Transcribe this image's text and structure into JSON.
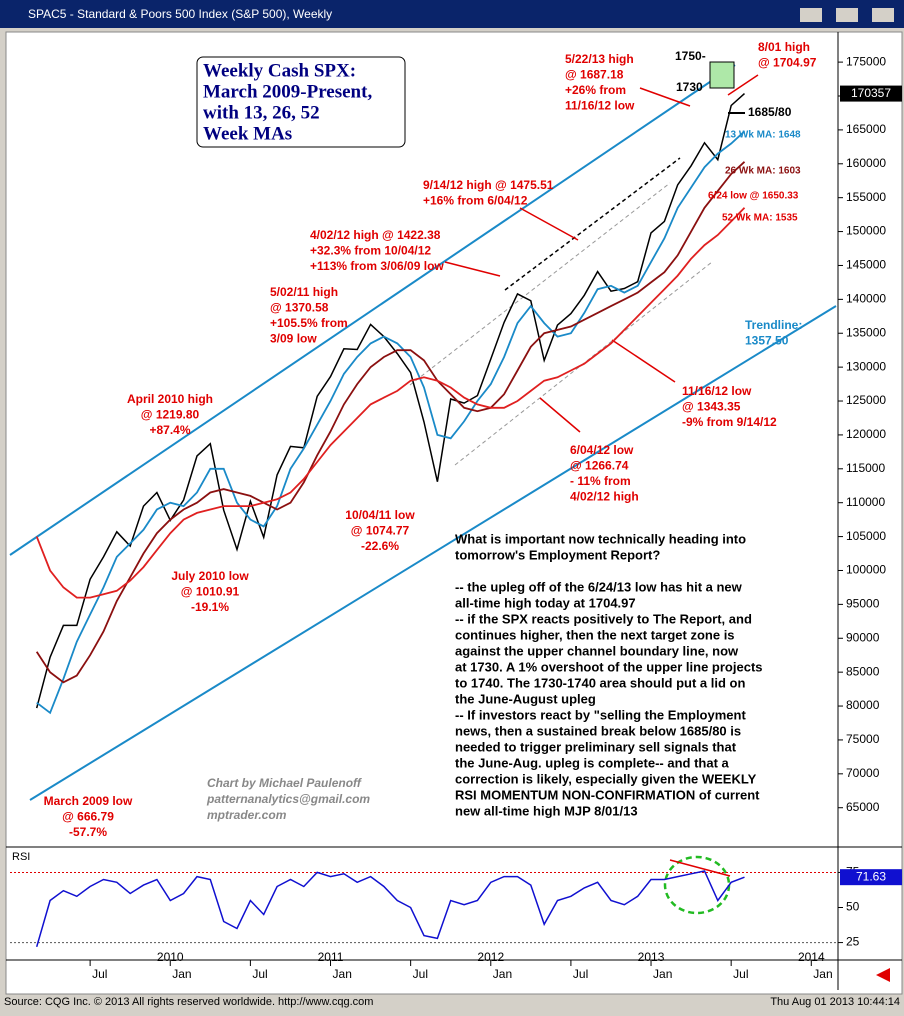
{
  "window_title": "SPAC5 - Standard & Poors 500 Index (S&P 500), Weekly",
  "footer": {
    "left": "Source: CQG Inc. © 2013 All rights reserved worldwide. http://www.cqg.com",
    "right": "Thu Aug 01 2013 10:44:14"
  },
  "title_box": [
    "Weekly Cash SPX:",
    "March 2009-Present,",
    "with 13, 26, 52",
    "Week MAs"
  ],
  "commentary": {
    "intro": [
      "What is important now technically heading into",
      "tomorrow's Employment Report?"
    ],
    "body": [
      "-- the upleg off of the 6/24/13 low has hit a new",
      "all-time high today at 1704.97",
      "-- if the SPX reacts positively to The Report, and",
      "continues higher, then the next target zone is",
      "against the upper channel boundary line, now",
      "at 1730.  A 1% overshoot of the upper line projects",
      "to 1740.  The 1730-1740 area should put a lid on",
      "the June-August upleg",
      "-- If investors react by \"selling the Employment",
      "news, then a sustained break below 1685/80 is",
      "needed to trigger preliminary sell signals that",
      "the June-Aug. upleg is complete-- and that a",
      "correction is likely, especially given the WEEKLY",
      "RSI MOMENTUM NON-CONFIRMATION of current",
      "new all-time high    MJP  8/01/13"
    ]
  },
  "credit": [
    "Chart by Michael Paulenoff",
    "patternanalytics@gmail.com",
    "mptrader.com"
  ],
  "chart_data": [
    {
      "type": "line",
      "x": [
        "2009-03",
        "2009-04",
        "2009-05",
        "2009-06",
        "2009-07",
        "2009-08",
        "2009-09",
        "2009-10",
        "2009-11",
        "2009-12",
        "2010-01",
        "2010-02",
        "2010-03",
        "2010-04",
        "2010-05",
        "2010-06",
        "2010-07",
        "2010-08",
        "2010-09",
        "2010-10",
        "2010-11",
        "2010-12",
        "2011-01",
        "2011-02",
        "2011-03",
        "2011-04",
        "2011-05",
        "2011-06",
        "2011-07",
        "2011-08",
        "2011-09",
        "2011-10",
        "2011-11",
        "2011-12",
        "2012-01",
        "2012-02",
        "2012-03",
        "2012-04",
        "2012-05",
        "2012-06",
        "2012-07",
        "2012-08",
        "2012-09",
        "2012-10",
        "2012-11",
        "2012-12",
        "2013-01",
        "2013-02",
        "2013-03",
        "2013-04",
        "2013-05",
        "2013-06",
        "2013-07",
        "2013-08"
      ],
      "xlim": [
        "2009-01",
        "2014-03"
      ],
      "series": [
        {
          "name": "SPX",
          "color": "#000000",
          "values": [
            79700,
            87200,
            91900,
            91900,
            98700,
            102000,
            105700,
            103600,
            109500,
            111500,
            107400,
            110400,
            116900,
            118700,
            108900,
            103100,
            110200,
            104900,
            114100,
            118300,
            118100,
            125700,
            128600,
            132700,
            132600,
            136300,
            134500,
            132000,
            129200,
            121900,
            113100,
            125300,
            124700,
            125800,
            131200,
            136600,
            140800,
            139800,
            131000,
            136200,
            137900,
            140600,
            144100,
            141200,
            141600,
            142600,
            149800,
            151500,
            156900,
            159700,
            163100,
            160600,
            168600,
            170357
          ]
        },
        {
          "name": "13 Wk MA",
          "color": "#1a8ac8",
          "values": [
            80500,
            79000,
            84000,
            89500,
            93500,
            97500,
            102000,
            104000,
            106000,
            109000,
            110000,
            109500,
            111500,
            115000,
            115000,
            110000,
            107500,
            106500,
            109500,
            115000,
            118000,
            121500,
            125000,
            129000,
            131500,
            133500,
            134500,
            133500,
            131500,
            127000,
            120000,
            119500,
            122000,
            125000,
            127500,
            131500,
            136500,
            139000,
            136500,
            134500,
            135000,
            138000,
            141500,
            142000,
            141000,
            142000,
            145500,
            149000,
            153500,
            156500,
            159500,
            161500,
            163000,
            164800
          ]
        },
        {
          "name": "26 Wk MA",
          "color": "#8b1010",
          "values": [
            88000,
            85000,
            83500,
            84500,
            87500,
            91000,
            95500,
            99000,
            102500,
            105500,
            107500,
            109000,
            110000,
            111500,
            112000,
            111500,
            111000,
            110000,
            109000,
            110000,
            113000,
            117000,
            120500,
            124500,
            127500,
            130000,
            131500,
            132500,
            132500,
            131000,
            128000,
            126000,
            124000,
            123500,
            124000,
            126000,
            129500,
            133000,
            135000,
            135500,
            136000,
            137000,
            138000,
            139000,
            140000,
            141000,
            142500,
            144000,
            146500,
            150000,
            153500,
            156000,
            158500,
            160300
          ]
        },
        {
          "name": "52 Wk MA",
          "color": "#e02020",
          "values": [
            105000,
            100000,
            97500,
            96000,
            96000,
            96500,
            97000,
            98500,
            100500,
            103000,
            105500,
            107500,
            108500,
            109000,
            109500,
            109500,
            109500,
            110000,
            110500,
            111500,
            113500,
            116000,
            118500,
            120500,
            122500,
            124500,
            125500,
            126500,
            128000,
            128500,
            128000,
            127000,
            125500,
            124500,
            124000,
            124000,
            125000,
            126500,
            128000,
            128500,
            129500,
            130500,
            132000,
            133500,
            135500,
            137500,
            139500,
            141500,
            143500,
            146000,
            148000,
            149500,
            151500,
            153500
          ]
        }
      ],
      "ylim": [
        59500,
        179000
      ],
      "yticks": [
        65000,
        70000,
        75000,
        80000,
        85000,
        90000,
        95000,
        100000,
        105000,
        110000,
        115000,
        120000,
        125000,
        130000,
        135000,
        140000,
        145000,
        150000,
        155000,
        160000,
        165000,
        170000,
        175000
      ],
      "xticks": [
        {
          "value": "2009-07",
          "label": "Jul"
        },
        {
          "value": "2010-01",
          "label": "Jan"
        },
        {
          "value": "2010-07",
          "label": "Jul"
        },
        {
          "value": "2011-01",
          "label": "Jan"
        },
        {
          "value": "2011-07",
          "label": "Jul"
        },
        {
          "value": "2012-01",
          "label": "Jan"
        },
        {
          "value": "2012-07",
          "label": "Jul"
        },
        {
          "value": "2013-01",
          "label": "Jan"
        },
        {
          "value": "2013-07",
          "label": "Jul"
        },
        {
          "value": "2014-01",
          "label": "Jan"
        }
      ],
      "year_ticks": [
        {
          "value": "2010-01",
          "label": "2010"
        },
        {
          "value": "2011-01",
          "label": "2011"
        },
        {
          "value": "2012-01",
          "label": "2012"
        },
        {
          "value": "2013-01",
          "label": "2013"
        },
        {
          "value": "2014-01",
          "label": "2014"
        }
      ],
      "annotations": [
        {
          "lines": [
            "5/22/13 high",
            "@ 1687.18",
            "+26% from",
            "11/16/12 low"
          ],
          "color": "#e00000"
        },
        {
          "lines": [
            "8/01 high",
            "@ 1704.97"
          ],
          "color": "#e00000"
        },
        {
          "lines": [
            "1750-"
          ],
          "color": "#000000"
        },
        {
          "lines": [
            "1730"
          ],
          "color": "#000000"
        },
        {
          "lines": [
            "1685/80"
          ],
          "color": "#000000"
        },
        {
          "lines": [
            "13 Wk MA: 1648"
          ],
          "color": "#1a8ac8"
        },
        {
          "lines": [
            "26 Wk MA: 1603"
          ],
          "color": "#8b1010"
        },
        {
          "lines": [
            "6/24 low @ 1650.33"
          ],
          "color": "#e00000"
        },
        {
          "lines": [
            "52 Wk MA: 1535"
          ],
          "color": "#e00000"
        },
        {
          "lines": [
            "9/14/12 high @ 1475.51",
            "+16% from 6/04/12"
          ],
          "color": "#e00000"
        },
        {
          "lines": [
            "4/02/12 high @ 1422.38",
            "+32.3% from 10/04/12",
            "+113% from 3/06/09 low"
          ],
          "color": "#e00000"
        },
        {
          "lines": [
            "5/02/11 high",
            "@ 1370.58",
            "+105.5% from",
            "3/09 low"
          ],
          "color": "#e00000"
        },
        {
          "lines": [
            "April 2010 high",
            "@ 1219.80",
            "+87.4%"
          ],
          "color": "#e00000"
        },
        {
          "lines": [
            "July 2010 low",
            "@ 1010.91",
            "-19.1%"
          ],
          "color": "#e00000"
        },
        {
          "lines": [
            "10/04/11 low",
            "@ 1074.77",
            "-22.6%"
          ],
          "color": "#e00000"
        },
        {
          "lines": [
            "6/04/12 low",
            "@ 1266.74",
            "- 11% from",
            "4/02/12 high"
          ],
          "color": "#e00000"
        },
        {
          "lines": [
            "11/16/12 low",
            "@ 1343.35",
            "-9% from 9/14/12"
          ],
          "color": "#e00000"
        },
        {
          "lines": [
            "Trendline:",
            "1357.50"
          ],
          "color": "#1a8ac8"
        },
        {
          "lines": [
            "March 2009 low",
            "@ 666.79",
            "-57.7%"
          ],
          "color": "#e00000"
        }
      ]
    },
    {
      "type": "line",
      "title": "RSI",
      "x": [
        "2009-03",
        "2009-04",
        "2009-05",
        "2009-06",
        "2009-07",
        "2009-08",
        "2009-09",
        "2009-10",
        "2009-11",
        "2009-12",
        "2010-01",
        "2010-02",
        "2010-03",
        "2010-04",
        "2010-05",
        "2010-06",
        "2010-07",
        "2010-08",
        "2010-09",
        "2010-10",
        "2010-11",
        "2010-12",
        "2011-01",
        "2011-02",
        "2011-03",
        "2011-04",
        "2011-05",
        "2011-06",
        "2011-07",
        "2011-08",
        "2011-09",
        "2011-10",
        "2011-11",
        "2011-12",
        "2012-01",
        "2012-02",
        "2012-03",
        "2012-04",
        "2012-05",
        "2012-06",
        "2012-07",
        "2012-08",
        "2012-09",
        "2012-10",
        "2012-11",
        "2012-12",
        "2013-01",
        "2013-02",
        "2013-03",
        "2013-04",
        "2013-05",
        "2013-06",
        "2013-07",
        "2013-08"
      ],
      "xlim": [
        "2009-01",
        "2014-03"
      ],
      "series": [
        {
          "name": "RSI",
          "color": "#1010d0",
          "values": [
            22,
            55,
            62,
            58,
            65,
            70,
            68,
            60,
            66,
            70,
            55,
            60,
            72,
            70,
            40,
            35,
            55,
            45,
            65,
            70,
            65,
            75,
            72,
            74,
            68,
            72,
            65,
            55,
            50,
            30,
            28,
            55,
            52,
            55,
            68,
            72,
            72,
            66,
            38,
            55,
            58,
            64,
            68,
            55,
            52,
            58,
            70,
            70,
            72,
            74,
            76,
            55,
            68,
            71.63
          ]
        }
      ],
      "ylim": [
        14,
        91
      ],
      "yticks": [
        25,
        50,
        75
      ],
      "levels": [
        75,
        25
      ]
    }
  ]
}
